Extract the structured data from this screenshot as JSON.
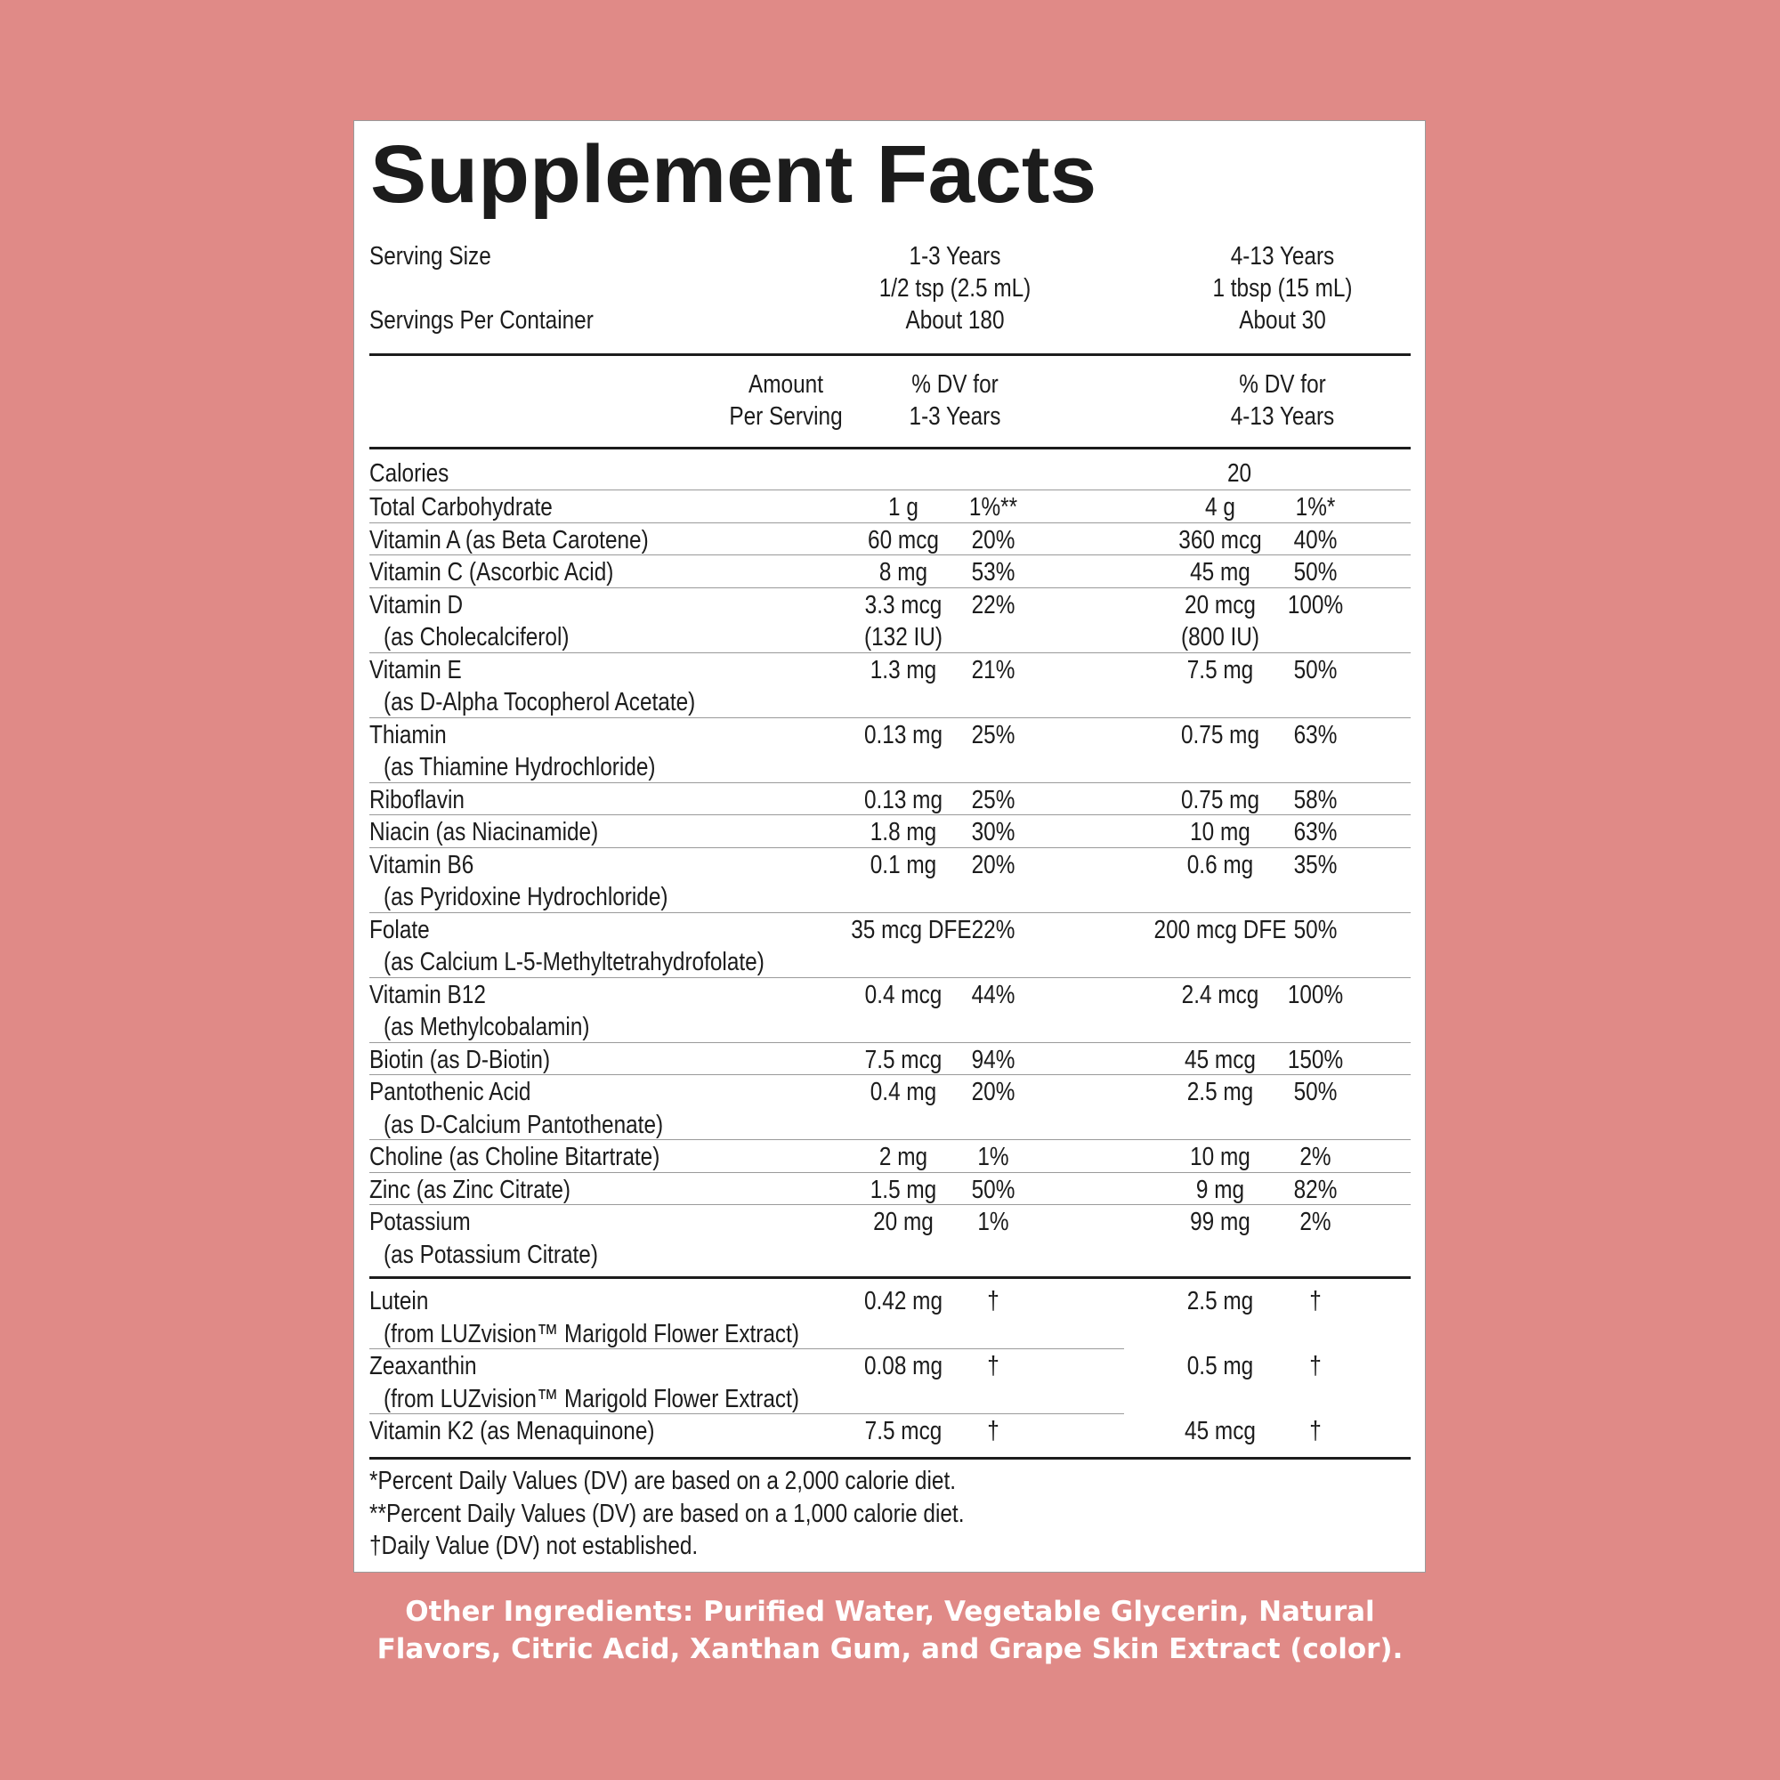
{
  "title": "Supplement Facts",
  "serving": {
    "size_label": "Serving Size",
    "per_container_label": "Servings Per Container",
    "age1": "1-3 Years",
    "age1_size": "1/2 tsp (2.5 mL)",
    "age1_servings": "About 180",
    "age2": "4-13 Years",
    "age2_size": "1 tbsp (15 mL)",
    "age2_servings": "About 30"
  },
  "headers": {
    "amount_1": "Amount",
    "amount_2": "Per Serving",
    "dv1_1": "% DV for",
    "dv1_2": "1-3 Years",
    "dv2_1": "% DV for",
    "dv2_2": "4-13 Years"
  },
  "calories": {
    "label": "Calories",
    "value": "20"
  },
  "nutrients": [
    {
      "name": "Total Carbohydrate",
      "sub": "",
      "amt1": "1 g",
      "amt1b": "",
      "dv1": "1%**",
      "amt2": "4 g",
      "amt2b": "",
      "dv2": "1%*"
    },
    {
      "name": "Vitamin A (as Beta Carotene)",
      "sub": "",
      "amt1": "60 mcg",
      "amt1b": "",
      "dv1": "20%",
      "amt2": "360 mcg",
      "amt2b": "",
      "dv2": "40%"
    },
    {
      "name": "Vitamin C (Ascorbic Acid)",
      "sub": "",
      "amt1": "8 mg",
      "amt1b": "",
      "dv1": "53%",
      "amt2": "45 mg",
      "amt2b": "",
      "dv2": "50%"
    },
    {
      "name": "Vitamin D",
      "sub": "(as Cholecalciferol)",
      "amt1": "3.3 mcg",
      "amt1b": "(132 IU)",
      "dv1": "22%",
      "amt2": "20 mcg",
      "amt2b": "(800 IU)",
      "dv2": "100%"
    },
    {
      "name": "Vitamin E",
      "sub": "(as D-Alpha Tocopherol Acetate)",
      "amt1": "1.3 mg",
      "amt1b": "",
      "dv1": "21%",
      "amt2": "7.5 mg",
      "amt2b": "",
      "dv2": "50%"
    },
    {
      "name": "Thiamin",
      "sub": "(as Thiamine Hydrochloride)",
      "amt1": "0.13 mg",
      "amt1b": "",
      "dv1": "25%",
      "amt2": "0.75 mg",
      "amt2b": "",
      "dv2": "63%"
    },
    {
      "name": "Riboflavin",
      "sub": "",
      "amt1": "0.13 mg",
      "amt1b": "",
      "dv1": "25%",
      "amt2": "0.75 mg",
      "amt2b": "",
      "dv2": "58%"
    },
    {
      "name": "Niacin (as Niacinamide)",
      "sub": "",
      "amt1": "1.8 mg",
      "amt1b": "",
      "dv1": "30%",
      "amt2": "10 mg",
      "amt2b": "",
      "dv2": "63%"
    },
    {
      "name": "Vitamin B6",
      "sub": "(as Pyridoxine Hydrochloride)",
      "amt1": "0.1 mg",
      "amt1b": "",
      "dv1": "20%",
      "amt2": "0.6 mg",
      "amt2b": "",
      "dv2": "35%"
    },
    {
      "name": "Folate",
      "sub": "(as Calcium L-5-Methyltetrahydrofolate)",
      "amt1": "35 mcg DFE",
      "amt1b": "",
      "dv1": "22%",
      "amt2": "200 mcg DFE",
      "amt2b": "",
      "dv2": "50%"
    },
    {
      "name": "Vitamin B12",
      "sub": "(as Methylcobalamin)",
      "amt1": "0.4 mcg",
      "amt1b": "",
      "dv1": "44%",
      "amt2": "2.4 mcg",
      "amt2b": "",
      "dv2": "100%"
    },
    {
      "name": "Biotin (as D-Biotin)",
      "sub": "",
      "amt1": "7.5 mcg",
      "amt1b": "",
      "dv1": "94%",
      "amt2": "45 mcg",
      "amt2b": "",
      "dv2": "150%"
    },
    {
      "name": "Pantothenic Acid",
      "sub": "(as D-Calcium Pantothenate)",
      "amt1": "0.4 mg",
      "amt1b": "",
      "dv1": "20%",
      "amt2": "2.5 mg",
      "amt2b": "",
      "dv2": "50%"
    },
    {
      "name": "Choline (as Choline Bitartrate)",
      "sub": "",
      "amt1": "2 mg",
      "amt1b": "",
      "dv1": "1%",
      "amt2": "10 mg",
      "amt2b": "",
      "dv2": "2%"
    },
    {
      "name": "Zinc (as Zinc Citrate)",
      "sub": "",
      "amt1": "1.5 mg",
      "amt1b": "",
      "dv1": "50%",
      "amt2": "9 mg",
      "amt2b": "",
      "dv2": "82%"
    },
    {
      "name": "Potassium",
      "sub": "(as Potassium Citrate)",
      "amt1": "20 mg",
      "amt1b": "",
      "dv1": "1%",
      "amt2": "99 mg",
      "amt2b": "",
      "dv2": "2%"
    }
  ],
  "others": [
    {
      "name": "Lutein",
      "sub": "(from LUZvision™ Marigold Flower Extract)",
      "amt1": "0.42 mg",
      "dv1": "†",
      "amt2": "2.5 mg",
      "dv2": "†"
    },
    {
      "name": "Zeaxanthin",
      "sub": "(from LUZvision™ Marigold Flower Extract)",
      "amt1": "0.08 mg",
      "dv1": "†",
      "amt2": "0.5 mg",
      "dv2": "†"
    },
    {
      "name": "Vitamin K2 (as Menaquinone)",
      "sub": "",
      "amt1": "7.5 mcg",
      "dv1": "†",
      "amt2": "45 mcg",
      "dv2": "†"
    }
  ],
  "footnotes": [
    "*Percent Daily Values (DV) are based on a 2,000 calorie diet.",
    "**Percent Daily Values (DV) are based on a 1,000 calorie diet.",
    "†Daily Value (DV) not established."
  ],
  "other_ingredients": {
    "line1": "Other Ingredients: Purified Water, Vegetable Glycerin, Natural",
    "line2": "Flavors, Citric Acid, Xanthan Gum, and Grape Skin Extract (color)."
  }
}
